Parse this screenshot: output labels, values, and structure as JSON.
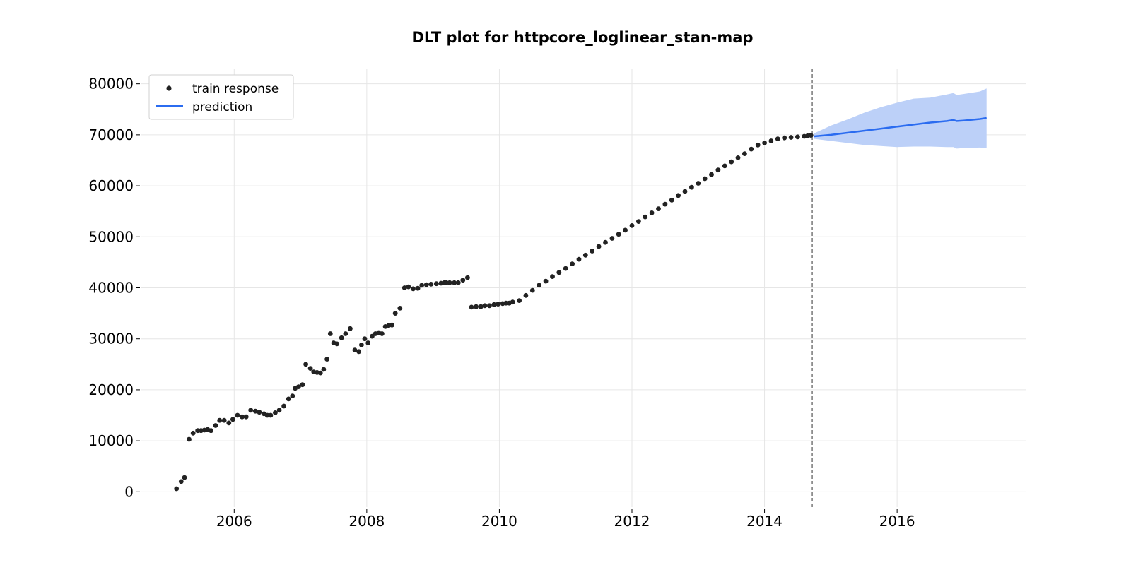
{
  "chart_data": {
    "type": "scatter",
    "title": "DLT plot for httpcore_loglinear_stan-map",
    "xlabel": "",
    "ylabel": "",
    "xlim": [
      2004.6,
      2017.95
    ],
    "ylim": [
      -3000,
      83000
    ],
    "x_ticks": [
      2006,
      2008,
      2010,
      2012,
      2014,
      2016
    ],
    "y_ticks": [
      0,
      10000,
      20000,
      30000,
      40000,
      50000,
      60000,
      70000,
      80000
    ],
    "grid": true,
    "legend_position": "top-left",
    "legend": [
      "train response",
      "prediction"
    ],
    "colors": {
      "train": "#222222",
      "prediction": "#2b6cf0",
      "band": "#bcd0f8",
      "cutoff": "#777777"
    },
    "training_end": 2014.72,
    "series": [
      {
        "name": "train response",
        "kind": "scatter",
        "x": [
          2005.13,
          2005.2,
          2005.25,
          2005.32,
          2005.38,
          2005.45,
          2005.5,
          2005.55,
          2005.6,
          2005.65,
          2005.72,
          2005.78,
          2005.85,
          2005.92,
          2005.98,
          2006.05,
          2006.12,
          2006.18,
          2006.25,
          2006.32,
          2006.38,
          2006.45,
          2006.5,
          2006.55,
          2006.62,
          2006.68,
          2006.75,
          2006.82,
          2006.88,
          2006.92,
          2006.97,
          2007.03,
          2007.08,
          2007.15,
          2007.2,
          2007.25,
          2007.3,
          2007.35,
          2007.4,
          2007.45,
          2007.5,
          2007.55,
          2007.62,
          2007.68,
          2007.75,
          2007.82,
          2007.88,
          2007.92,
          2007.97,
          2008.02,
          2008.08,
          2008.13,
          2008.18,
          2008.23,
          2008.28,
          2008.33,
          2008.38,
          2008.43,
          2008.5,
          2008.57,
          2008.63,
          2008.7,
          2008.77,
          2008.83,
          2008.9,
          2008.97,
          2009.05,
          2009.12,
          2009.17,
          2009.2,
          2009.25,
          2009.32,
          2009.38,
          2009.45,
          2009.52,
          2009.58,
          2009.65,
          2009.72,
          2009.78,
          2009.85,
          2009.92,
          2009.98,
          2010.05,
          2010.1,
          2010.15,
          2010.2,
          2010.3,
          2010.4,
          2010.5,
          2010.6,
          2010.7,
          2010.8,
          2010.9,
          2011.0,
          2011.1,
          2011.2,
          2011.3,
          2011.4,
          2011.5,
          2011.6,
          2011.7,
          2011.8,
          2011.9,
          2012.0,
          2012.1,
          2012.2,
          2012.3,
          2012.4,
          2012.5,
          2012.6,
          2012.7,
          2012.8,
          2012.9,
          2013.0,
          2013.1,
          2013.2,
          2013.3,
          2013.4,
          2013.5,
          2013.6,
          2013.7,
          2013.8,
          2013.9,
          2014.0,
          2014.1,
          2014.2,
          2014.3,
          2014.4,
          2014.5,
          2014.6,
          2014.65,
          2014.7
        ],
        "y": [
          600,
          2000,
          2800,
          10300,
          11500,
          12000,
          12000,
          12100,
          12200,
          12000,
          13000,
          14000,
          14000,
          13500,
          14200,
          15000,
          14700,
          14700,
          16000,
          15800,
          15600,
          15300,
          15000,
          15000,
          15500,
          16000,
          16800,
          18200,
          18800,
          20300,
          20600,
          21000,
          25000,
          24200,
          23500,
          23400,
          23300,
          24000,
          26000,
          31000,
          29200,
          29000,
          30200,
          31000,
          32000,
          27800,
          27500,
          28800,
          30000,
          29200,
          30500,
          31000,
          31200,
          31000,
          32400,
          32600,
          32700,
          35000,
          36000,
          40000,
          40200,
          39800,
          39900,
          40500,
          40600,
          40700,
          40800,
          40900,
          41000,
          41000,
          41000,
          41000,
          41000,
          41500,
          42000,
          36200,
          36300,
          36300,
          36500,
          36500,
          36700,
          36800,
          36900,
          37000,
          37000,
          37200,
          37500,
          38500,
          39500,
          40500,
          41300,
          42200,
          43000,
          43800,
          44700,
          45600,
          46400,
          47200,
          48100,
          48900,
          49700,
          50500,
          51300,
          52200,
          53000,
          53900,
          54700,
          55500,
          56400,
          57200,
          58100,
          58900,
          59700,
          60500,
          61400,
          62200,
          63100,
          63900,
          64700,
          65500,
          66300,
          67200,
          68000,
          68400,
          68800,
          69200,
          69400,
          69500,
          69600,
          69700,
          69800,
          69900
        ]
      },
      {
        "name": "prediction",
        "kind": "line",
        "x": [
          2014.75,
          2015.0,
          2015.25,
          2015.5,
          2015.75,
          2016.0,
          2016.25,
          2016.5,
          2016.75,
          2016.85,
          2016.9,
          2017.0,
          2017.25,
          2017.35
        ],
        "y": [
          69700,
          70000,
          70400,
          70800,
          71200,
          71600,
          72000,
          72400,
          72700,
          72900,
          72700,
          72800,
          73100,
          73300
        ],
        "upper": [
          70300,
          71800,
          73000,
          74300,
          75400,
          76300,
          77100,
          77300,
          77900,
          78200,
          77800,
          78000,
          78500,
          79100
        ],
        "lower": [
          69200,
          68800,
          68400,
          68000,
          67800,
          67600,
          67700,
          67700,
          67600,
          67600,
          67300,
          67400,
          67500,
          67400
        ]
      }
    ]
  }
}
